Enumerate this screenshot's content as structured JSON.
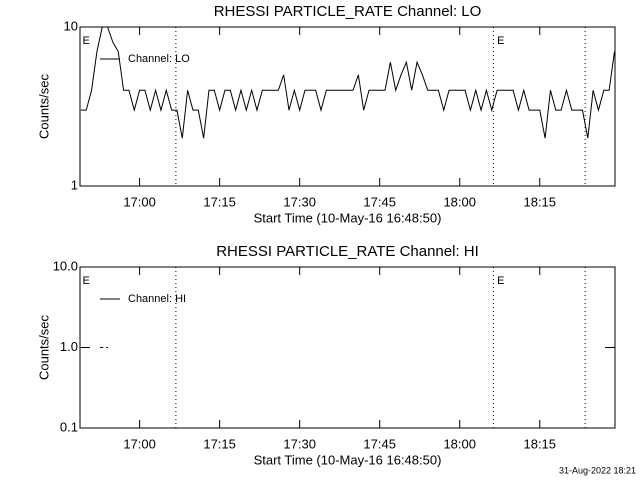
{
  "chart_data": [
    {
      "type": "line",
      "title": "RHESSI PARTICLE_RATE Channel: LO",
      "x_label": "Start Time (10-May-16 16:48:50)",
      "y_label": "Counts/sec",
      "x": [
        1009,
        1010,
        1011,
        1012,
        1013,
        1014,
        1015,
        1016,
        1017,
        1018,
        1019,
        1020,
        1021,
        1022,
        1023,
        1024,
        1025,
        1026,
        1027,
        1028,
        1029,
        1030,
        1031,
        1032,
        1033,
        1034,
        1035,
        1036,
        1037,
        1038,
        1039,
        1040,
        1041,
        1042,
        1043,
        1044,
        1045,
        1046,
        1047,
        1048,
        1049,
        1050,
        1051,
        1052,
        1053,
        1054,
        1055,
        1056,
        1057,
        1058,
        1059,
        1060,
        1061,
        1062,
        1063,
        1064,
        1065,
        1066,
        1067,
        1068,
        1069,
        1070,
        1071,
        1072,
        1073,
        1074,
        1075,
        1076,
        1077,
        1078,
        1079,
        1080,
        1081,
        1082,
        1083,
        1084,
        1085,
        1086,
        1087,
        1088,
        1089,
        1090,
        1091,
        1092,
        1093,
        1094,
        1095,
        1096,
        1097,
        1098,
        1099,
        1100,
        1101,
        1102,
        1103,
        1104,
        1105,
        1106,
        1107,
        1108,
        1109
      ],
      "series": [
        {
          "name": "Channel: LO",
          "color": "#000000",
          "line_style": "solid",
          "values": [
            3,
            3,
            4,
            7,
            10,
            10,
            8,
            7,
            4,
            4,
            3,
            4,
            4,
            3,
            4,
            3,
            4,
            3,
            3,
            2,
            4,
            3,
            3,
            2,
            4,
            4,
            3,
            4,
            4,
            3,
            4,
            3,
            4,
            3,
            4,
            4,
            4,
            4,
            5,
            3,
            4,
            3,
            4,
            4,
            4,
            3,
            4,
            4,
            4,
            4,
            4,
            4,
            5,
            3,
            4,
            4,
            4,
            4,
            6,
            4,
            5,
            6,
            4,
            6,
            5,
            4,
            4,
            4,
            3,
            4,
            4,
            4,
            4,
            3,
            4,
            3,
            4,
            3,
            4,
            4,
            4,
            4,
            3,
            4,
            3,
            3,
            3,
            2,
            4,
            3,
            3,
            4,
            3,
            3,
            3,
            2,
            4,
            3,
            4,
            4,
            7
          ]
        }
      ],
      "xlim": [
        1008.83,
        1109.1
      ],
      "xticks": [
        {
          "value": 1020,
          "label": "17:00"
        },
        {
          "value": 1035,
          "label": "17:15"
        },
        {
          "value": 1050,
          "label": "17:30"
        },
        {
          "value": 1065,
          "label": "17:45"
        },
        {
          "value": 1080,
          "label": "18:00"
        },
        {
          "value": 1095,
          "label": "18:15"
        }
      ],
      "ylim": [
        1,
        10
      ],
      "yticks": [
        1,
        10
      ],
      "log_y": true,
      "event_lines": [
        1026.8,
        1086.3,
        1103.5
      ],
      "markers": [
        {
          "x": 1009.3,
          "label": "E"
        },
        {
          "x": 1087,
          "label": "E"
        }
      ]
    },
    {
      "type": "line",
      "title": "RHESSI PARTICLE_RATE Channel: HI",
      "x_label": "Start Time (10-May-16 16:48:50)",
      "y_label": "Counts/sec",
      "x": [
        1012.6,
        1014.1
      ],
      "series": [
        {
          "name": "Channel: HI",
          "color": "#000000",
          "line_style": "dashed",
          "values": [
            1,
            1
          ]
        }
      ],
      "xlim": [
        1008.83,
        1109.1
      ],
      "xticks": [
        {
          "value": 1020,
          "label": "17:00"
        },
        {
          "value": 1035,
          "label": "17:15"
        },
        {
          "value": 1050,
          "label": "17:30"
        },
        {
          "value": 1065,
          "label": "17:45"
        },
        {
          "value": 1080,
          "label": "18:00"
        },
        {
          "value": 1095,
          "label": "18:15"
        }
      ],
      "ylim": [
        0.1,
        10
      ],
      "yticks": [
        {
          "value": 0.1,
          "label": "0.1"
        },
        {
          "value": 1,
          "label": "1.0"
        },
        {
          "value": 10,
          "label": "10.0"
        }
      ],
      "log_y": true,
      "event_lines": [
        1026.8,
        1086.3,
        1103.5
      ],
      "markers": [
        {
          "x": 1009.3,
          "label": "E"
        },
        {
          "x": 1087,
          "label": "E"
        }
      ]
    }
  ],
  "footer": "31-Aug-2022 18:21"
}
